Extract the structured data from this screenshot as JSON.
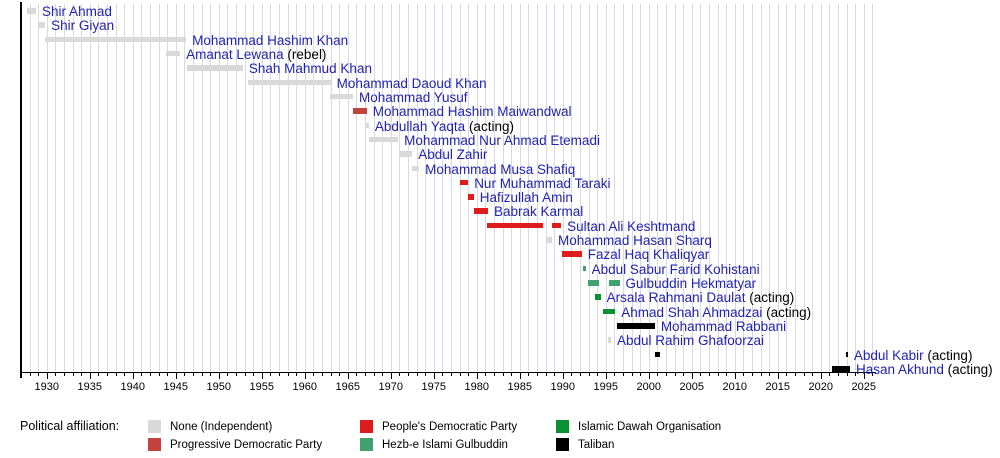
{
  "chart_data": {
    "type": "timeline",
    "title": "",
    "description": "Timeline of Afghan prime ministers with terms shown as bars colored by political affiliation",
    "x_axis": {
      "start_year": 1927,
      "end_year": 2026.3,
      "minor_step": 1,
      "major_step": 5,
      "tick_labels": [
        "1930",
        "1935",
        "1940",
        "1945",
        "1950",
        "1955",
        "1960",
        "1965",
        "1970",
        "1975",
        "1980",
        "1985",
        "1990",
        "1995",
        "2000",
        "2005",
        "2010",
        "2015",
        "2020",
        "2025"
      ]
    },
    "parties": {
      "none": "#d9d9d9",
      "progressive": "#c2423e",
      "peoples": "#df1c1c",
      "hezb": "#41a26f",
      "dawah": "#0a9132",
      "taliban": "#000000"
    },
    "text_link_color": "#2222b2",
    "rows": [
      {
        "name": "Shir Ahmad",
        "suffix": "",
        "party": "none",
        "segments": [
          [
            1927.7,
            1928.75
          ]
        ]
      },
      {
        "name": "Shir Giyan",
        "suffix": "",
        "party": "none",
        "segments": [
          [
            1929.0,
            1929.8
          ]
        ]
      },
      {
        "name": "Mohammad Hashim Khan",
        "suffix": "",
        "party": "none",
        "segments": [
          [
            1929.8,
            1946.2
          ]
        ]
      },
      {
        "name": "Amanat Lewana",
        "suffix": "(rebel)",
        "party": "none",
        "segments": [
          [
            1943.9,
            1945.5
          ]
        ]
      },
      {
        "name": "Shah Mahmud Khan",
        "suffix": "",
        "party": "none",
        "segments": [
          [
            1946.3,
            1952.8
          ]
        ]
      },
      {
        "name": "Mohammad Daoud Khan",
        "suffix": "",
        "party": "none",
        "segments": [
          [
            1953.4,
            1963.0
          ]
        ]
      },
      {
        "name": "Mohammad Yusuf",
        "suffix": "",
        "party": "none",
        "segments": [
          [
            1962.9,
            1965.6
          ]
        ]
      },
      {
        "name": "Mohammad Hashim Maiwandwal",
        "suffix": "",
        "party": "progressive",
        "segments": [
          [
            1965.6,
            1967.2
          ]
        ]
      },
      {
        "name": "Abdullah Yaqta",
        "suffix": "(acting)",
        "party": "none",
        "segments": [
          [
            1967.15,
            1967.45
          ]
        ]
      },
      {
        "name": "Mohammad Nur Ahmad Etemadi",
        "suffix": "",
        "party": "none",
        "segments": [
          [
            1967.5,
            1970.85
          ]
        ]
      },
      {
        "name": "Abdul Zahir",
        "suffix": "",
        "party": "none",
        "segments": [
          [
            1971.0,
            1972.5
          ]
        ]
      },
      {
        "name": "Mohammad Musa Shafiq",
        "suffix": "",
        "party": "none",
        "segments": [
          [
            1972.5,
            1973.3
          ]
        ]
      },
      {
        "name": "Nur Muhammad Taraki",
        "suffix": "",
        "party": "peoples",
        "segments": [
          [
            1978.05,
            1979.0
          ]
        ]
      },
      {
        "name": "Hafizullah Amin",
        "suffix": "",
        "party": "peoples",
        "segments": [
          [
            1979.0,
            1979.65
          ]
        ]
      },
      {
        "name": "Babrak Karmal",
        "suffix": "",
        "party": "peoples",
        "segments": [
          [
            1979.65,
            1981.3
          ]
        ]
      },
      {
        "name": "Sultan Ali Keshtmand",
        "suffix": "",
        "party": "peoples",
        "segments": [
          [
            1981.2,
            1987.7
          ],
          [
            1988.7,
            1989.8
          ]
        ]
      },
      {
        "name": "Mohammad Hasan Sharq",
        "suffix": "",
        "party": "none",
        "segments": [
          [
            1988.2,
            1988.75
          ]
        ]
      },
      {
        "name": "Fazal Haq Khaliqyar",
        "suffix": "",
        "party": "peoples",
        "segments": [
          [
            1989.9,
            1992.2
          ]
        ]
      },
      {
        "name": "Abdul Sabur Farid Kohistani",
        "suffix": "",
        "party": "hezb",
        "segments": [
          [
            1992.3,
            1992.65
          ]
        ]
      },
      {
        "name": "Gulbuddin Hekmatyar",
        "suffix": "",
        "party": "hezb",
        "segments": [
          [
            1992.9,
            1994.2
          ],
          [
            1995.35,
            1996.6
          ]
        ]
      },
      {
        "name": "Arsala Rahmani Daulat",
        "suffix": "(acting)",
        "party": "dawah",
        "segments": [
          [
            1993.8,
            1994.4
          ]
        ]
      },
      {
        "name": "Ahmad Shah Ahmadzai",
        "suffix": "(acting)",
        "party": "dawah",
        "segments": [
          [
            1994.7,
            1996.1
          ]
        ]
      },
      {
        "name": "Mohammad Rabbani",
        "suffix": "",
        "party": "taliban",
        "segments": [
          [
            1996.3,
            2000.7
          ]
        ]
      },
      {
        "name": "Abdul Rahim Ghafoorzai",
        "suffix": "",
        "party": "none",
        "segments": [
          [
            1995.3,
            1995.6
          ]
        ]
      },
      {
        "name": "Abdul Kabir",
        "suffix": "(acting)",
        "party": "taliban",
        "segments": [
          [
            2000.7,
            2001.3
          ],
          [
            2022.9,
            2023.15
          ]
        ]
      },
      {
        "name": "Hasan Akhund",
        "suffix": "(acting)",
        "party": "taliban",
        "segments": [
          [
            2021.3,
            2023.4
          ]
        ]
      }
    ],
    "legend": {
      "title": "Political affiliation:",
      "entries": [
        {
          "label": "None (Independent)",
          "party": "none",
          "col": 0,
          "row": 0
        },
        {
          "label": "Progressive Democratic Party",
          "party": "progressive",
          "col": 0,
          "row": 1
        },
        {
          "label": "People's Democratic Party",
          "party": "peoples",
          "col": 1,
          "row": 0
        },
        {
          "label": "Hezb-e Islami Gulbuddin",
          "party": "hezb",
          "col": 1,
          "row": 1
        },
        {
          "label": "Islamic Dawah Organisation",
          "party": "dawah",
          "col": 2,
          "row": 0
        },
        {
          "label": "Taliban",
          "party": "taliban",
          "col": 2,
          "row": 1
        }
      ]
    }
  }
}
